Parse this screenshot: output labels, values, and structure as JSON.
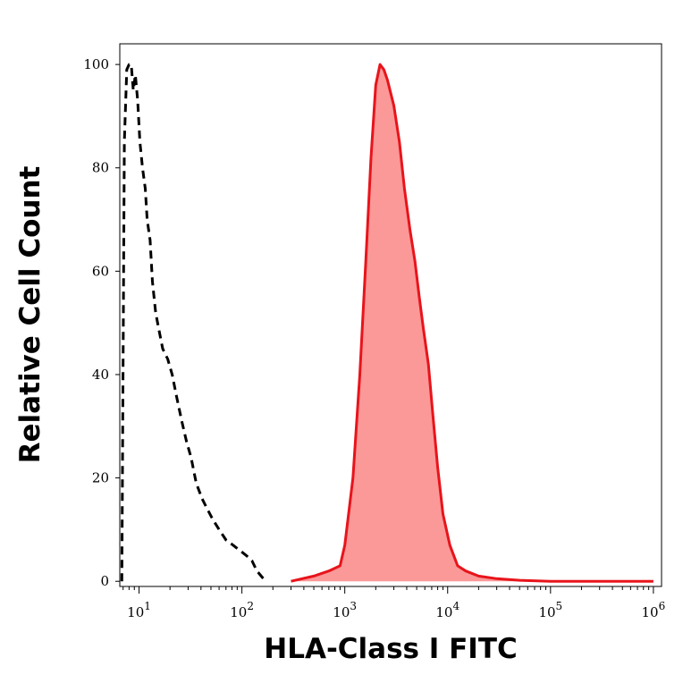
{
  "chart_data": {
    "type": "area",
    "xlabel": "HLA-Class I FITC",
    "ylabel": "Relative Cell Count",
    "x_scale": "log",
    "xlim": [
      6.5,
      1200000
    ],
    "ylim": [
      -1,
      104
    ],
    "x_ticks": [
      {
        "value": 10,
        "base": "10",
        "exp": "1"
      },
      {
        "value": 100,
        "base": "10",
        "exp": "2"
      },
      {
        "value": 1000,
        "base": "10",
        "exp": "3"
      },
      {
        "value": 10000,
        "base": "10",
        "exp": "4"
      },
      {
        "value": 100000,
        "base": "10",
        "exp": "5"
      },
      {
        "value": 1000000,
        "base": "10",
        "exp": "6"
      }
    ],
    "y_ticks": [
      0,
      20,
      40,
      60,
      80,
      100
    ],
    "grid": false,
    "legend": "none",
    "colors": {
      "stained": "#e8141b",
      "stained_fill": "#fb9898",
      "control": "#000000"
    },
    "series": [
      {
        "style": "dashed-line",
        "x": [
          6.8,
          7.2,
          7.6,
          8.0,
          8.4,
          8.8,
          9.2,
          9.7,
          10.2,
          10.8,
          11.5,
          12.0,
          12.8,
          13.5,
          14.5,
          15.5,
          17,
          19,
          21,
          23,
          26,
          29,
          32,
          36,
          41,
          46,
          52,
          60,
          70,
          82,
          95,
          110,
          125,
          140,
          170
        ],
        "y": [
          0,
          85,
          99,
          100,
          100,
          95,
          98,
          93,
          85,
          80,
          76,
          70,
          66,
          58,
          52,
          49,
          45,
          43,
          40,
          36,
          31,
          27,
          24,
          19,
          16,
          14,
          12,
          10,
          8,
          7,
          6,
          5,
          4,
          2,
          0
        ]
      },
      {
        "style": "filled-area",
        "x": [
          300,
          500,
          700,
          900,
          1000,
          1200,
          1400,
          1600,
          1800,
          2000,
          2200,
          2400,
          2600,
          3000,
          3400,
          3800,
          4300,
          4800,
          5300,
          5800,
          6500,
          7200,
          8000,
          9000,
          10500,
          12500,
          15000,
          20000,
          30000,
          50000,
          100000,
          1000000
        ],
        "y": [
          0,
          1,
          2,
          3,
          7,
          20,
          40,
          62,
          82,
          96,
          100,
          99,
          97,
          92,
          85,
          76,
          68,
          62,
          55,
          49,
          42,
          32,
          22,
          13,
          7,
          3,
          2,
          1,
          0.5,
          0.2,
          0,
          0
        ]
      }
    ]
  }
}
